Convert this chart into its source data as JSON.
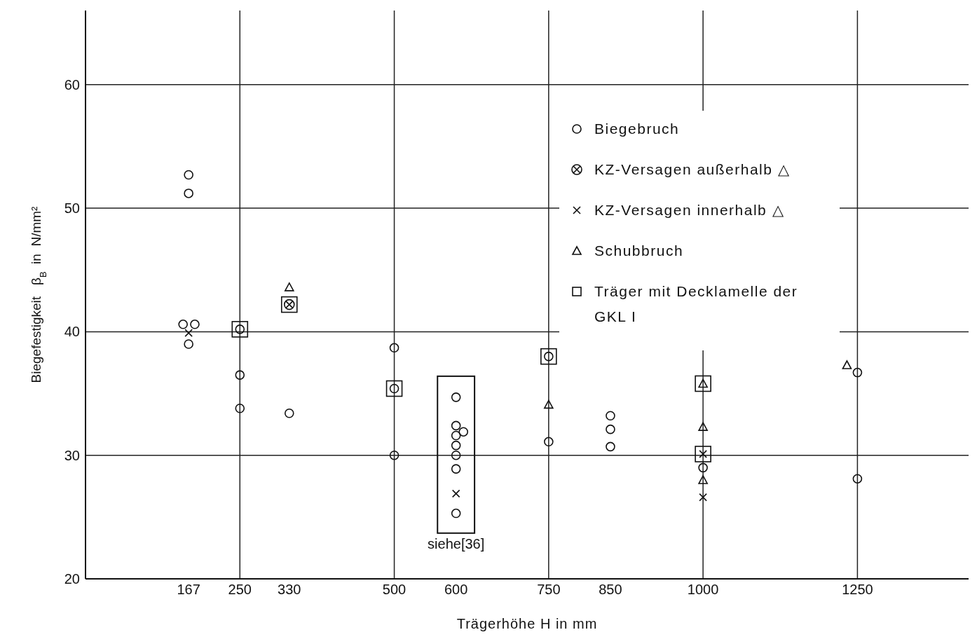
{
  "chart_data": {
    "type": "scatter",
    "xlabel": "Trägerhöhe H in mm",
    "ylabel": "Biegefestigkeit   β$_{B}$  in  N/mm²",
    "xlim": [
      0,
      1430
    ],
    "ylim": [
      20,
      66
    ],
    "xticks": [
      167,
      250,
      330,
      500,
      600,
      750,
      850,
      1000,
      1250
    ],
    "yticks": [
      20,
      30,
      40,
      50,
      60
    ],
    "grid": "y",
    "legend": "top right",
    "ref_lines": [
      {
        "axis": "x",
        "value": 250,
        "label": null
      },
      {
        "axis": "x",
        "value": 500,
        "label": null
      },
      {
        "axis": "x",
        "value": 750,
        "label": null
      },
      {
        "axis": "x",
        "value": 1000,
        "label": null
      },
      {
        "axis": "x",
        "value": 1250,
        "label": null
      }
    ],
    "annotations": [
      {
        "text": "siehe[36]",
        "x": 600,
        "y": 25.3
      }
    ],
    "series": [
      {
        "name": "Biegebruch",
        "color": "#111111",
        "marker": "circle",
        "x": [
          167,
          167,
          158,
          177,
          167,
          250,
          250,
          250,
          330,
          500,
          500,
          500,
          600,
          600,
          612,
          600,
          600,
          600,
          600,
          600,
          750,
          750,
          850,
          850,
          850,
          1000,
          1250,
          1250
        ],
        "values": [
          52.7,
          51.2,
          40.6,
          40.6,
          39.0,
          40.2,
          36.5,
          33.8,
          33.4,
          38.7,
          35.4,
          30.0,
          34.7,
          32.4,
          31.9,
          31.6,
          30.8,
          30.0,
          28.9,
          25.3,
          38.0,
          31.1,
          33.2,
          32.1,
          30.7,
          29.0,
          36.7,
          28.1
        ]
      },
      {
        "name": "KZ-Versagen außerhalb △",
        "color": "#111111",
        "marker": "circle-cross",
        "x": [
          330
        ],
        "values": [
          42.2
        ]
      },
      {
        "name": "KZ-Versagen innerhalb △",
        "color": "#111111",
        "marker": "cross",
        "x": [
          167,
          600,
          1000,
          1000
        ],
        "values": [
          39.9,
          26.9,
          30.1,
          26.6
        ]
      },
      {
        "name": "Schubbruch",
        "color": "#111111",
        "marker": "triangle",
        "x": [
          330,
          750,
          1000,
          1000,
          1000,
          1233
        ],
        "values": [
          43.6,
          34.1,
          35.8,
          32.3,
          28.0,
          37.3
        ]
      },
      {
        "name": "Träger mit Decklamelle der GKL I",
        "color": "#111111",
        "marker": "square",
        "x": [
          250,
          330,
          500,
          750,
          1000,
          1000
        ],
        "values": [
          40.2,
          42.2,
          35.4,
          38.0,
          35.8,
          30.1
        ]
      }
    ]
  }
}
